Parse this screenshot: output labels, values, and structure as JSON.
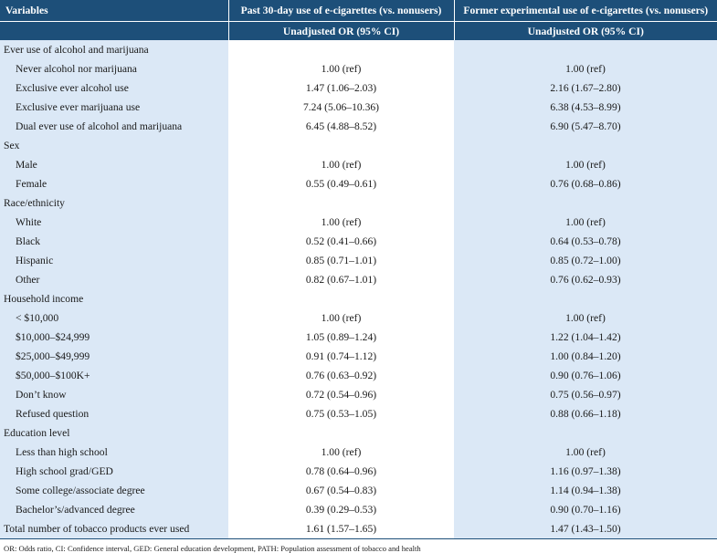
{
  "header": {
    "variables": "Variables",
    "col1": "Past 30-day use of e-cigarettes (vs. nonusers)",
    "col2": "Former experimental use of e-cigarettes (vs. nonusers)",
    "sub1": "Unadjusted OR (95% CI)",
    "sub2": "Unadjusted OR (95% CI)"
  },
  "rows": [
    {
      "type": "section",
      "label": "Ever use of alcohol and marijuana",
      "v1": "",
      "v2": ""
    },
    {
      "type": "item",
      "label": "Never alcohol nor marijuana",
      "v1": "1.00 (ref)",
      "v2": "1.00 (ref)"
    },
    {
      "type": "item",
      "label": "Exclusive ever alcohol use",
      "v1": "1.47 (1.06–2.03)",
      "v2": "2.16 (1.67–2.80)"
    },
    {
      "type": "item",
      "label": "Exclusive ever marijuana use",
      "v1": "7.24 (5.06–10.36)",
      "v2": "6.38 (4.53–8.99)"
    },
    {
      "type": "item",
      "label": "Dual ever use of alcohol and marijuana",
      "v1": "6.45 (4.88–8.52)",
      "v2": "6.90 (5.47–8.70)"
    },
    {
      "type": "section",
      "label": "Sex",
      "v1": "",
      "v2": ""
    },
    {
      "type": "item",
      "label": "Male",
      "v1": "1.00 (ref)",
      "v2": "1.00 (ref)"
    },
    {
      "type": "item",
      "label": "Female",
      "v1": "0.55 (0.49–0.61)",
      "v2": "0.76 (0.68–0.86)"
    },
    {
      "type": "section",
      "label": "Race/ethnicity",
      "v1": "",
      "v2": ""
    },
    {
      "type": "item",
      "label": "White",
      "v1": "1.00 (ref)",
      "v2": "1.00 (ref)"
    },
    {
      "type": "item",
      "label": "Black",
      "v1": "0.52 (0.41–0.66)",
      "v2": "0.64 (0.53–0.78)"
    },
    {
      "type": "item",
      "label": "Hispanic",
      "v1": "0.85 (0.71–1.01)",
      "v2": "0.85 (0.72–1.00)"
    },
    {
      "type": "item",
      "label": "Other",
      "v1": "0.82 (0.67–1.01)",
      "v2": "0.76 (0.62–0.93)"
    },
    {
      "type": "section",
      "label": "Household income",
      "v1": "",
      "v2": ""
    },
    {
      "type": "item",
      "label": "< $10,000",
      "v1": "1.00 (ref)",
      "v2": "1.00 (ref)"
    },
    {
      "type": "item",
      "label": "$10,000–$24,999",
      "v1": "1.05 (0.89–1.24)",
      "v2": "1.22 (1.04–1.42)"
    },
    {
      "type": "item",
      "label": "$25,000–$49,999",
      "v1": "0.91 (0.74–1.12)",
      "v2": "1.00 (0.84–1.20)"
    },
    {
      "type": "item",
      "label": "$50,000–$100K+",
      "v1": "0.76 (0.63–0.92)",
      "v2": "0.90 (0.76–1.06)"
    },
    {
      "type": "item",
      "label": "Don’t know",
      "v1": "0.72 (0.54–0.96)",
      "v2": "0.75 (0.56–0.97)"
    },
    {
      "type": "item",
      "label": "Refused question",
      "v1": "0.75 (0.53–1.05)",
      "v2": "0.88 (0.66–1.18)"
    },
    {
      "type": "section",
      "label": "Education level",
      "v1": "",
      "v2": ""
    },
    {
      "type": "item",
      "label": "Less than high school",
      "v1": "1.00 (ref)",
      "v2": "1.00 (ref)"
    },
    {
      "type": "item",
      "label": "High school grad/GED",
      "v1": "0.78 (0.64–0.96)",
      "v2": "1.16 (0.97–1.38)"
    },
    {
      "type": "item",
      "label": "Some college/associate degree",
      "v1": "0.67 (0.54–0.83)",
      "v2": "1.14 (0.94–1.38)"
    },
    {
      "type": "item",
      "label": "Bachelor’s/advanced degree",
      "v1": "0.39 (0.29–0.53)",
      "v2": "0.90 (0.70–1.16)"
    },
    {
      "type": "section",
      "label": "Total number of tobacco products ever used",
      "v1": "1.61 (1.57–1.65)",
      "v2": "1.47 (1.43–1.50)"
    }
  ],
  "footnote": "OR: Odds ratio, CI: Confidence interval, GED: General education development, PATH: Population assessment of tobacco and health"
}
